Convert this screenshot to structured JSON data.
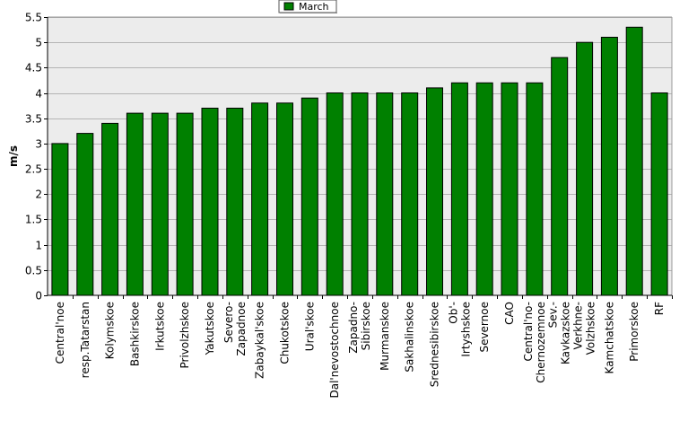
{
  "chart_data": {
    "type": "bar",
    "ylabel": "m/s",
    "ylim": [
      0,
      5.5
    ],
    "yticks": [
      "0",
      "0.5",
      "1",
      "1.5",
      "2",
      "2.5",
      "3",
      "3.5",
      "4",
      "4.5",
      "5",
      "5.5"
    ],
    "grid": true,
    "legend_position": "top-center",
    "series": [
      {
        "name": "March",
        "color": "#008000",
        "values": [
          3.0,
          3.2,
          3.4,
          3.6,
          3.6,
          3.6,
          3.7,
          3.7,
          3.8,
          3.8,
          3.9,
          4.0,
          4.0,
          4.0,
          4.0,
          4.1,
          4.2,
          4.2,
          4.2,
          4.2,
          4.7,
          5.0,
          5.1,
          5.3,
          4.0
        ]
      }
    ],
    "categories": [
      [
        "Central'noe"
      ],
      [
        "resp.Tatarstan"
      ],
      [
        "Kolymskoe"
      ],
      [
        "Bashkirskoe"
      ],
      [
        "Irkutskoe"
      ],
      [
        "Privolzhskoe"
      ],
      [
        "Yakutskoe"
      ],
      [
        "Severo-",
        "Zapadnoe"
      ],
      [
        "Zabaykal'skoe"
      ],
      [
        "Chukotskoe"
      ],
      [
        "Ural'skoe"
      ],
      [
        "Dal'nevostochnoe"
      ],
      [
        "Zapadno-",
        "Sibirskoe"
      ],
      [
        "Murmanskoe"
      ],
      [
        "Sakhalinskoe"
      ],
      [
        "Srednesibirskoe"
      ],
      [
        "Ob'-",
        "Irtyshskoe"
      ],
      [
        "Severnoe"
      ],
      [
        "CAO"
      ],
      [
        "Central'no-",
        "Chernozemnoe"
      ],
      [
        "Sev.-",
        "Kavkazskoe"
      ],
      [
        "Verkhne-",
        "Volzhskoe"
      ],
      [
        "Kamchatskoe"
      ],
      [
        "Primorskoe"
      ],
      [
        "RF"
      ]
    ]
  }
}
